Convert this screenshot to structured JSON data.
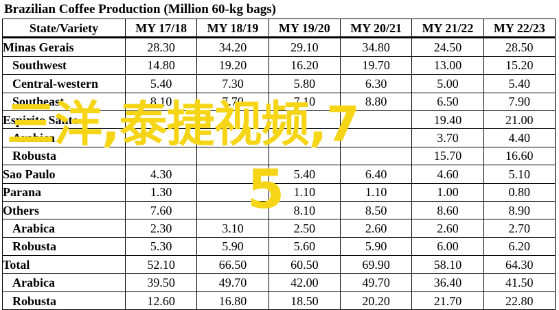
{
  "title": "Brazilian Coffee Production (Million 60-kg bags)",
  "header": [
    "State/Variety",
    "MY 17/18",
    "MY 18/19",
    "MY 19/20",
    "MY 20/21",
    "MY 21/22",
    "MY 22/23"
  ],
  "rows": [
    {
      "label": "Minas Gerais",
      "values": [
        "28.30",
        "34.20",
        "29.10",
        "34.80",
        "24.50",
        "28.50"
      ]
    },
    {
      "label": "Southwest",
      "values": [
        "14.80",
        "19.20",
        "16.20",
        "19.70",
        "13.00",
        "15.20"
      ]
    },
    {
      "label": "Central-western",
      "values": [
        "5.40",
        "7.30",
        "5.80",
        "6.30",
        "5.00",
        "5.40"
      ]
    },
    {
      "label": "Southeast",
      "values": [
        "8.10",
        "7.70",
        "7.10",
        "8.80",
        "6.50",
        "7.90"
      ]
    },
    {
      "label": "Espirito Santo",
      "values": [
        "",
        "",
        "",
        "",
        "19.40",
        "21.00"
      ]
    },
    {
      "label": "Arabica",
      "values": [
        "",
        "",
        "",
        "",
        "3.70",
        "4.40"
      ]
    },
    {
      "label": "Robusta",
      "values": [
        "",
        "",
        "",
        "",
        "15.70",
        "16.60"
      ]
    },
    {
      "label": "Sao Paulo",
      "values": [
        "4.30",
        "",
        "5.40",
        "6.40",
        "4.60",
        "5.10"
      ]
    },
    {
      "label": "Parana",
      "values": [
        "1.30",
        "",
        "1.10",
        "1.10",
        "1.00",
        "0.80"
      ]
    },
    {
      "label": "Others",
      "values": [
        "7.60",
        "",
        "8.10",
        "8.50",
        "8.60",
        "8.90"
      ]
    },
    {
      "label": "Arabica",
      "values": [
        "2.30",
        "3.10",
        "2.50",
        "2.60",
        "2.60",
        "2.70"
      ]
    },
    {
      "label": "Robusta",
      "values": [
        "5.30",
        "5.90",
        "5.60",
        "5.90",
        "6.00",
        "6.20"
      ]
    },
    {
      "label": "Total",
      "values": [
        "52.10",
        "66.50",
        "60.50",
        "69.90",
        "58.10",
        "64.30"
      ]
    },
    {
      "label": "Arabica",
      "values": [
        "39.50",
        "49.70",
        "42.00",
        "49.70",
        "36.40",
        "41.50"
      ]
    },
    {
      "label": "Robusta",
      "values": [
        "12.60",
        "16.80",
        "18.50",
        "20.20",
        "21.70",
        "22.80"
      ]
    }
  ],
  "watermark": {
    "line1": "三洋,泰捷视频,7",
    "line2": "5",
    "color": "#f5d516"
  }
}
